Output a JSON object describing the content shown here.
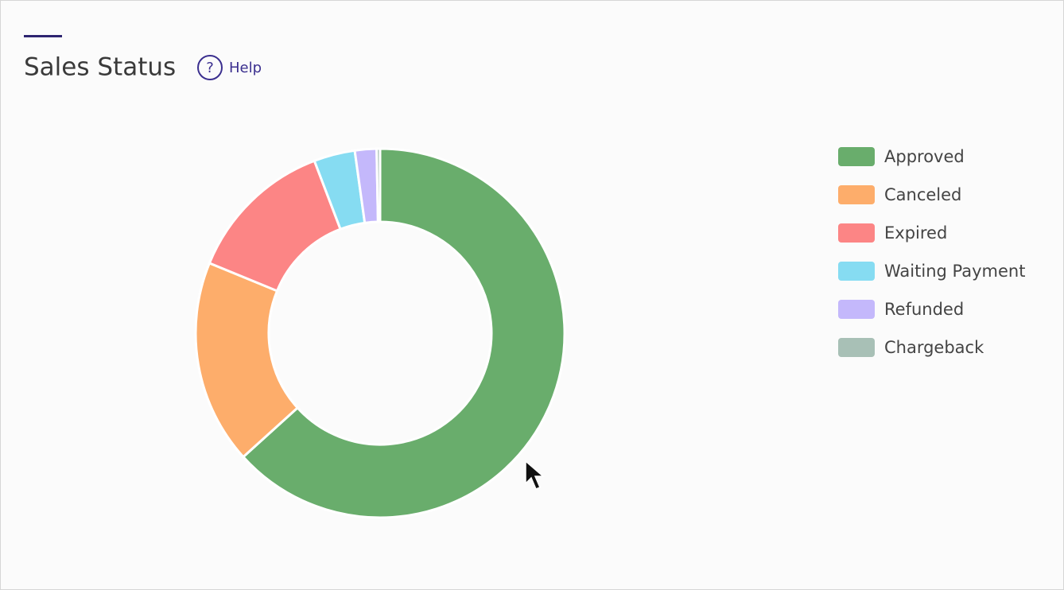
{
  "chart_data": {
    "type": "donut",
    "title": "Sales Status",
    "help_label": "Help",
    "categories": [
      "Approved",
      "Canceled",
      "Expired",
      "Waiting Payment",
      "Refunded",
      "Chargeback"
    ],
    "values": [
      63.3,
      17.9,
      13,
      3.6,
      1.9,
      0.3
    ],
    "colors": [
      "#69ad6c",
      "#fdad6b",
      "#fc8585",
      "#86dcf2",
      "#c4b8fb",
      "#a8c0b6"
    ],
    "legend": "right"
  }
}
